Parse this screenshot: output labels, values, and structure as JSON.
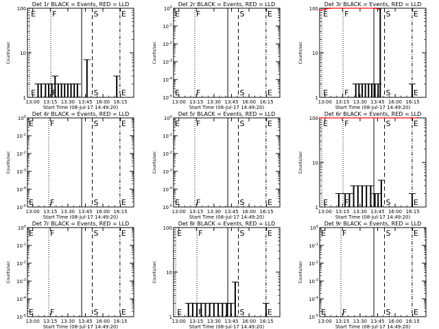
{
  "chart_data": [
    {
      "type": "line",
      "title": "Det 1r BLACK = Events, RED = LLD",
      "ylabel": "Counts/sec",
      "xlabel": "Start Time (08-Jul-17 14:49:20)",
      "x_tick_labels": [
        "13:00",
        "13:15",
        "13:30",
        "13:45",
        "16:00",
        "16:15"
      ],
      "y_scale": "log",
      "ylim": [
        1,
        100
      ],
      "y_tick_labels": [
        {
          "m": "1",
          "e": ""
        },
        {
          "m": "10",
          "e": ""
        },
        {
          "m": "100",
          "e": ""
        }
      ],
      "markers": [
        {
          "label": "E",
          "x": 0.02,
          "style": "dotted"
        },
        {
          "label": "F",
          "x": 0.22,
          "style": "dotted"
        },
        {
          "label": "S",
          "x": 0.61,
          "style": "dashed"
        },
        {
          "label": "E",
          "x": 0.87,
          "style": "dotdash"
        }
      ],
      "solid_line_x": 0.51,
      "events": [
        [
          0.1,
          2
        ],
        [
          0.13,
          2
        ],
        [
          0.17,
          2
        ],
        [
          0.2,
          2
        ],
        [
          0.23,
          2
        ],
        [
          0.26,
          3
        ],
        [
          0.29,
          2
        ],
        [
          0.32,
          2
        ],
        [
          0.35,
          2
        ],
        [
          0.38,
          2
        ],
        [
          0.41,
          2
        ],
        [
          0.44,
          2
        ],
        [
          0.47,
          2
        ],
        [
          0.56,
          7
        ],
        [
          0.84,
          3
        ]
      ],
      "lld": []
    },
    {
      "type": "line",
      "title": "Det 2r BLACK = Events, RED = LLD",
      "ylabel": "Counts/sec",
      "xlabel": "Start Time (08-Jul-17 14:49:20)",
      "x_tick_labels": [
        "13:00",
        "13:15",
        "13:30",
        "13:45",
        "16:00",
        "16:15"
      ],
      "y_scale": "log",
      "ylim": [
        1e-05,
        1
      ],
      "y_tick_labels": [
        {
          "m": "10",
          "e": "-5"
        },
        {
          "m": "10",
          "e": "-4"
        },
        {
          "m": "10",
          "e": "-3"
        },
        {
          "m": "10",
          "e": "-2"
        },
        {
          "m": "10",
          "e": "-1"
        },
        {
          "m": "10",
          "e": "0"
        }
      ],
      "markers": [
        {
          "label": "E",
          "x": 0.0,
          "style": "dotted"
        },
        {
          "label": "F",
          "x": 0.2,
          "style": "dotted"
        },
        {
          "label": "S",
          "x": 0.61,
          "style": "dashed"
        },
        {
          "label": "E",
          "x": 0.87,
          "style": "dotdash"
        }
      ],
      "solid_line_x": 0.51,
      "events": [],
      "lld": []
    },
    {
      "type": "line",
      "title": "Det 3r BLACK = Events, RED = LLD",
      "ylabel": "Counts/sec",
      "xlabel": "Start Time (08-Jul-17 14:49:20)",
      "x_tick_labels": [
        "13:00",
        "13:15",
        "13:30",
        "13:45",
        "16:00",
        "16:15"
      ],
      "y_scale": "log",
      "ylim": [
        1,
        100
      ],
      "y_tick_labels": [
        {
          "m": "1",
          "e": ""
        },
        {
          "m": "10",
          "e": ""
        },
        {
          "m": "100",
          "e": ""
        }
      ],
      "markers": [
        {
          "label": "E",
          "x": 0.02,
          "style": "dotted"
        },
        {
          "label": "F",
          "x": 0.22,
          "style": "dotted"
        },
        {
          "label": "S",
          "x": 0.61,
          "style": "dashed"
        },
        {
          "label": "E",
          "x": 0.87,
          "style": "dotdash"
        }
      ],
      "solid_line_x": 0.51,
      "events": [
        [
          0.34,
          2
        ],
        [
          0.37,
          2
        ],
        [
          0.4,
          2
        ],
        [
          0.43,
          2
        ],
        [
          0.46,
          2
        ],
        [
          0.49,
          2
        ],
        [
          0.52,
          2
        ],
        [
          0.55,
          2
        ],
        [
          0.57,
          100
        ],
        [
          0.87,
          2
        ]
      ],
      "lld": [
        [
          0.0,
          90
        ],
        [
          0.05,
          95
        ],
        [
          0.1,
          100
        ],
        [
          0.52,
          100
        ],
        [
          0.56,
          95
        ]
      ]
    },
    {
      "type": "line",
      "title": "Det 4r BLACK = Events, RED = LLD",
      "ylabel": "Counts/sec",
      "xlabel": "Start Time (08-Jul-17 14:49:20)",
      "x_tick_labels": [
        "13:00",
        "13:15",
        "13:30",
        "13:45",
        "16:00",
        "16:15"
      ],
      "y_scale": "log",
      "ylim": [
        1e-05,
        1
      ],
      "y_tick_labels": [
        {
          "m": "10",
          "e": "-5"
        },
        {
          "m": "10",
          "e": "-4"
        },
        {
          "m": "10",
          "e": "-3"
        },
        {
          "m": "10",
          "e": "-2"
        },
        {
          "m": "10",
          "e": "-1"
        },
        {
          "m": "10",
          "e": "0"
        }
      ],
      "markers": [
        {
          "label": "E",
          "x": 0.0,
          "style": "dotted"
        },
        {
          "label": "F",
          "x": 0.2,
          "style": "dotted"
        },
        {
          "label": "S",
          "x": 0.61,
          "style": "dashed"
        },
        {
          "label": "E",
          "x": 0.87,
          "style": "dotdash"
        }
      ],
      "solid_line_x": 0.51,
      "events": [],
      "lld": []
    },
    {
      "type": "line",
      "title": "Det 5r BLACK = Events, RED = LLD",
      "ylabel": "Counts/sec",
      "xlabel": "Start Time (08-Jul-17 14:49:20)",
      "x_tick_labels": [
        "13:00",
        "13:15",
        "13:30",
        "13:45",
        "16:00",
        "16:15"
      ],
      "y_scale": "log",
      "ylim": [
        1e-05,
        1
      ],
      "y_tick_labels": [
        {
          "m": "10",
          "e": "-5"
        },
        {
          "m": "10",
          "e": "-4"
        },
        {
          "m": "10",
          "e": "-3"
        },
        {
          "m": "10",
          "e": "-2"
        },
        {
          "m": "10",
          "e": "-1"
        },
        {
          "m": "10",
          "e": "0"
        }
      ],
      "markers": [
        {
          "label": "E",
          "x": 0.0,
          "style": "dotted"
        },
        {
          "label": "F",
          "x": 0.2,
          "style": "dotted"
        },
        {
          "label": "S",
          "x": 0.61,
          "style": "dashed"
        },
        {
          "label": "E",
          "x": 0.87,
          "style": "dotdash"
        }
      ],
      "solid_line_x": 0.51,
      "events": [],
      "lld": []
    },
    {
      "type": "line",
      "title": "Det 6r BLACK = Events, RED = LLD",
      "ylabel": "Counts/sec",
      "xlabel": "Start Time (08-Jul-17 14:49:20)",
      "x_tick_labels": [
        "13:00",
        "13:15",
        "13:30",
        "13:45",
        "16:00",
        "16:15"
      ],
      "y_scale": "log",
      "ylim": [
        1,
        100
      ],
      "y_tick_labels": [
        {
          "m": "1",
          "e": ""
        },
        {
          "m": "10",
          "e": ""
        },
        {
          "m": "100",
          "e": ""
        }
      ],
      "markers": [
        {
          "label": "E",
          "x": 0.02,
          "style": "dotted"
        },
        {
          "label": "F",
          "x": 0.22,
          "style": "dotted"
        },
        {
          "label": "S",
          "x": 0.61,
          "style": "dashed"
        },
        {
          "label": "E",
          "x": 0.87,
          "style": "dotdash"
        }
      ],
      "solid_line_x": 0.51,
      "events": [
        [
          0.18,
          2
        ],
        [
          0.24,
          2
        ],
        [
          0.28,
          2
        ],
        [
          0.32,
          3
        ],
        [
          0.36,
          3
        ],
        [
          0.4,
          3
        ],
        [
          0.44,
          3
        ],
        [
          0.48,
          3
        ],
        [
          0.52,
          2
        ],
        [
          0.55,
          2
        ],
        [
          0.58,
          4
        ],
        [
          0.87,
          2
        ]
      ],
      "lld": [
        [
          0.0,
          100
        ],
        [
          0.06,
          100
        ],
        [
          0.86,
          100
        ],
        [
          0.92,
          100
        ]
      ]
    },
    {
      "type": "line",
      "title": "Det 7r BLACK = Events, RED = LLD",
      "ylabel": "Counts/sec",
      "xlabel": "Start Time (08-Jul-17 14:49:20)",
      "x_tick_labels": [
        "13:00",
        "13:15",
        "13:30",
        "13:45",
        "16:00",
        "16:15"
      ],
      "y_scale": "log",
      "ylim": [
        1e-05,
        1
      ],
      "y_tick_labels": [
        {
          "m": "10",
          "e": "-5"
        },
        {
          "m": "10",
          "e": "-4"
        },
        {
          "m": "10",
          "e": "-3"
        },
        {
          "m": "10",
          "e": "-2"
        },
        {
          "m": "10",
          "e": "-1"
        },
        {
          "m": "10",
          "e": "0"
        }
      ],
      "markers": [
        {
          "label": "E",
          "x": 0.0,
          "style": "dotted"
        },
        {
          "label": "F",
          "x": 0.2,
          "style": "dotted"
        },
        {
          "label": "S",
          "x": 0.61,
          "style": "dashed"
        },
        {
          "label": "E",
          "x": 0.87,
          "style": "dotdash"
        }
      ],
      "solid_line_x": 0.51,
      "events": [],
      "lld": []
    },
    {
      "type": "line",
      "title": "Det 8r BLACK = Events, RED = LLD",
      "ylabel": "Counts/sec",
      "xlabel": "Start Time (08-Jul-17 14:49:20)",
      "x_tick_labels": [
        "13:00",
        "13:15",
        "13:30",
        "13:45",
        "16:00",
        "16:15"
      ],
      "y_scale": "log",
      "ylim": [
        1,
        100
      ],
      "y_tick_labels": [
        {
          "m": "1",
          "e": ""
        },
        {
          "m": "10",
          "e": ""
        },
        {
          "m": "100",
          "e": ""
        }
      ],
      "markers": [
        {
          "label": "E",
          "x": 0.02,
          "style": "dotted"
        },
        {
          "label": "F",
          "x": 0.22,
          "style": "dotted"
        },
        {
          "label": "S",
          "x": 0.61,
          "style": "dashed"
        },
        {
          "label": "E",
          "x": 0.87,
          "style": "dotdash"
        }
      ],
      "solid_line_x": 0.51,
      "events": [
        [
          0.14,
          2
        ],
        [
          0.18,
          2
        ],
        [
          0.22,
          2
        ],
        [
          0.26,
          2
        ],
        [
          0.3,
          2
        ],
        [
          0.34,
          2
        ],
        [
          0.38,
          2
        ],
        [
          0.42,
          2
        ],
        [
          0.46,
          2
        ],
        [
          0.5,
          2
        ],
        [
          0.54,
          2
        ],
        [
          0.58,
          6
        ],
        [
          0.87,
          2
        ]
      ],
      "lld": []
    },
    {
      "type": "line",
      "title": "Det 9r BLACK = Events, RED = LLD",
      "ylabel": "Counts/sec",
      "xlabel": "Start Time (08-Jul-17 14:49:20)",
      "x_tick_labels": [
        "13:00",
        "13:15",
        "13:30",
        "13:45",
        "16:00",
        "16:15"
      ],
      "y_scale": "log",
      "ylim": [
        1e-05,
        1
      ],
      "y_tick_labels": [
        {
          "m": "10",
          "e": "-5"
        },
        {
          "m": "10",
          "e": "-4"
        },
        {
          "m": "10",
          "e": "-3"
        },
        {
          "m": "10",
          "e": "-2"
        },
        {
          "m": "10",
          "e": "-1"
        },
        {
          "m": "10",
          "e": "0"
        }
      ],
      "markers": [
        {
          "label": "E",
          "x": 0.0,
          "style": "dotted"
        },
        {
          "label": "F",
          "x": 0.2,
          "style": "dotted"
        },
        {
          "label": "S",
          "x": 0.61,
          "style": "dashed"
        },
        {
          "label": "E",
          "x": 0.87,
          "style": "dotdash"
        }
      ],
      "solid_line_x": 0.51,
      "events": [],
      "lld": []
    }
  ],
  "colors": {
    "events": "#000000",
    "lld": "#ff0000",
    "axes": "#000000",
    "background": "#ffffff"
  }
}
